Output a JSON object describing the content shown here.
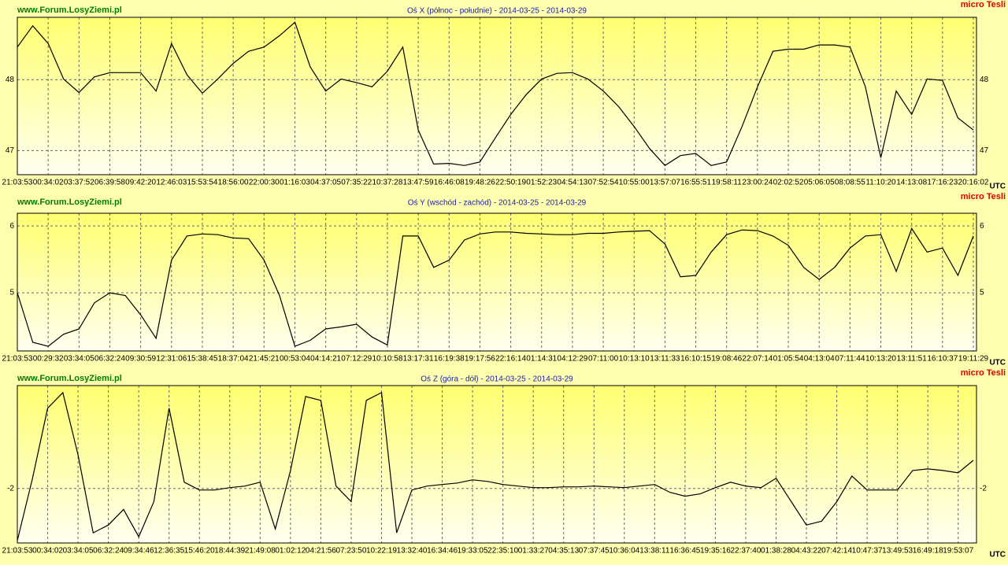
{
  "chart_data": [
    {
      "type": "line",
      "watermark": "www.Forum.LosyZiemi.pl",
      "title": "Oś X (północ - południe) - 2014-03-25 - 2014-03-29",
      "brand": "micro Tesli",
      "xlabel": "UTC",
      "color": "#000000",
      "grid": true,
      "categories": [
        "21:03:53",
        null,
        "00:34:02",
        null,
        "03:37:52",
        null,
        "06:39:58",
        null,
        "09:42:20",
        null,
        "12:46:03",
        null,
        "15:53:54",
        null,
        "18:56:00",
        null,
        "22:00:30",
        null,
        "01:16:03",
        null,
        "04:37:05",
        null,
        "07:35:22",
        null,
        "10:37:28",
        null,
        "13:47:59",
        null,
        "16:46:08",
        null,
        "19:48:26",
        null,
        "22:50:19",
        null,
        "01:52:23",
        null,
        "04:54:13",
        null,
        "07:52:54",
        null,
        "10:55:00",
        null,
        "13:57:07",
        null,
        "16:55:51",
        null,
        "19:58:11",
        null,
        "23:00:24",
        null,
        "02:02:52",
        null,
        "05:06:05",
        null,
        "08:08:55",
        null,
        "11:10:20",
        null,
        "14:13:08",
        null,
        "17:16:23",
        null,
        "20:16:02"
      ],
      "values": [
        48.46,
        48.76,
        48.51,
        48.01,
        47.82,
        48.04,
        48.1,
        48.1,
        48.1,
        47.84,
        48.51,
        48.07,
        47.81,
        48.01,
        48.23,
        48.4,
        48.46,
        48.62,
        48.81,
        48.18,
        47.84,
        48.01,
        47.96,
        47.9,
        48.12,
        48.46,
        47.29,
        46.81,
        46.82,
        46.79,
        46.84,
        47.18,
        47.51,
        47.79,
        48.01,
        48.09,
        48.1,
        48.01,
        47.84,
        47.62,
        47.34,
        47.03,
        46.79,
        46.93,
        46.96,
        46.79,
        46.84,
        47.34,
        47.9,
        48.4,
        48.43,
        48.43,
        48.49,
        48.49,
        48.46,
        47.9,
        46.9,
        47.84,
        47.51,
        48.01,
        47.99,
        47.46,
        47.29
      ],
      "ylim": [
        46.66,
        48.88
      ],
      "yticks": [
        47,
        48
      ]
    },
    {
      "type": "line",
      "watermark": "www.Forum.LosyZiemi.pl",
      "title": "Oś Y (wschód - zachód) - 2014-03-25 - 2014-03-29",
      "brand": "micro Tesli",
      "xlabel": "UTC",
      "color": "#000000",
      "grid": true,
      "categories": [
        "21:03:53",
        null,
        "00:29:32",
        null,
        "03:34:05",
        null,
        "06:32:24",
        null,
        "09:30:59",
        null,
        "12:31:06",
        null,
        "15:38:45",
        null,
        "18:37:04",
        null,
        "21:45:21",
        null,
        "00:53:04",
        null,
        "04:14:21",
        null,
        "07:12:29",
        null,
        "10:10:58",
        null,
        "13:17:31",
        null,
        "16:19:38",
        null,
        "19:17:56",
        null,
        "22:16:14",
        null,
        "01:14:31",
        null,
        "04:12:29",
        null,
        "07:11:00",
        null,
        "10:13:10",
        null,
        "13:11:33",
        null,
        "16:10:15",
        null,
        "19:08:46",
        null,
        "22:07:14",
        null,
        "01:05:54",
        null,
        "04:13:04",
        null,
        "07:11:44",
        null,
        "10:13:20",
        null,
        "13:11:51",
        null,
        "16:10:37",
        null,
        "19:11:29"
      ],
      "values": [
        5.0,
        4.26,
        4.2,
        4.38,
        4.46,
        4.85,
        5.0,
        4.96,
        4.67,
        4.32,
        5.49,
        5.85,
        5.88,
        5.87,
        5.82,
        5.81,
        5.49,
        4.96,
        4.2,
        4.29,
        4.46,
        4.49,
        4.53,
        4.34,
        4.22,
        5.85,
        5.85,
        5.38,
        5.49,
        5.79,
        5.88,
        5.91,
        5.91,
        5.89,
        5.88,
        5.87,
        5.87,
        5.89,
        5.89,
        5.91,
        5.92,
        5.93,
        5.73,
        5.24,
        5.26,
        5.61,
        5.87,
        5.94,
        5.93,
        5.85,
        5.71,
        5.38,
        5.2,
        5.38,
        5.67,
        5.85,
        5.87,
        5.32,
        5.96,
        5.61,
        5.67,
        5.26,
        5.85
      ],
      "ylim": [
        4.13,
        6.19
      ],
      "yticks": [
        5,
        6
      ]
    },
    {
      "type": "line",
      "watermark": "www.Forum.LosyZiemi.pl",
      "title": "Oś Z (góra - dół) - 2014-03-25 - 2014-03-29",
      "brand": "micro Tesli",
      "xlabel": "UTC",
      "color": "#000000",
      "grid": true,
      "categories": [
        "21:03:53",
        null,
        "00:34:02",
        null,
        "03:34:05",
        null,
        "06:32:24",
        null,
        "09:34:46",
        null,
        "12:36:35",
        null,
        "15:46:20",
        null,
        "18:44:39",
        null,
        "21:49:08",
        null,
        "01:02:12",
        null,
        "04:21:56",
        null,
        "07:23:50",
        null,
        "10:22:19",
        null,
        "13:32:40",
        null,
        "16:34:46",
        null,
        "19:33:05",
        null,
        "22:35:10",
        null,
        "01:33:27",
        null,
        "04:35:13",
        null,
        "07:37:45",
        null,
        "10:36:04",
        null,
        "13:38:11",
        null,
        "16:36:45",
        null,
        "19:35:16",
        null,
        "22:37:40",
        null,
        "01:38:28",
        null,
        "04:43:22",
        null,
        "07:42:14",
        null,
        "10:47:37",
        null,
        "13:49:53",
        null,
        "16:49:18",
        null,
        "19:53:07",
        null
      ],
      "values": [
        -2.67,
        -1.87,
        -0.97,
        -0.77,
        -1.57,
        -2.57,
        -2.47,
        -2.27,
        -2.62,
        -2.17,
        -0.97,
        -1.92,
        -2.02,
        -2.02,
        -1.99,
        -1.97,
        -1.92,
        -2.52,
        -1.77,
        -0.82,
        -0.87,
        -1.97,
        -2.17,
        -0.87,
        -0.77,
        -2.57,
        -2.02,
        -1.97,
        -1.95,
        -1.93,
        -1.89,
        -1.91,
        -1.95,
        -1.97,
        -1.99,
        -1.99,
        -1.98,
        -1.98,
        -1.97,
        -1.98,
        -1.99,
        -1.97,
        -1.95,
        -2.05,
        -2.1,
        -2.07,
        -1.99,
        -1.92,
        -1.97,
        -1.99,
        -1.87,
        -2.17,
        -2.47,
        -2.42,
        -2.17,
        -1.84,
        -2.02,
        -2.02,
        -2.02,
        -1.77,
        -1.75,
        -1.77,
        -1.8,
        -1.64
      ],
      "ylim": [
        -2.7,
        -0.68
      ],
      "yticks": [
        -2
      ]
    }
  ]
}
